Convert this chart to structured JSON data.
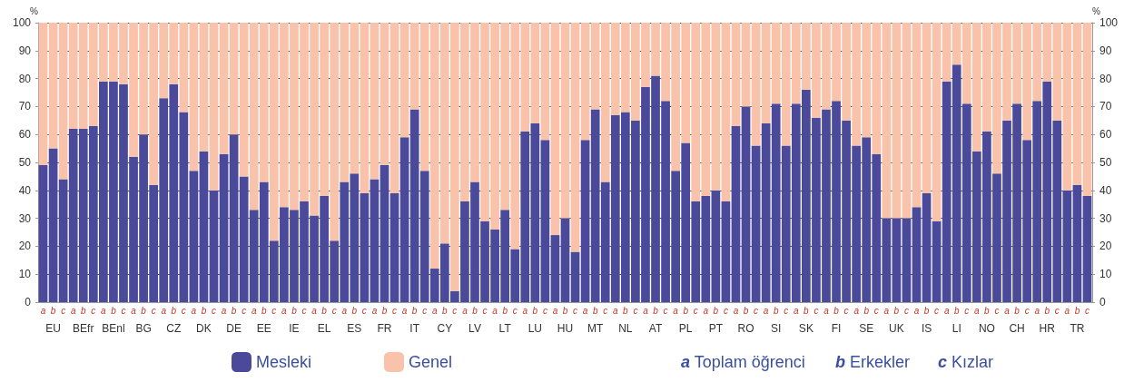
{
  "chart_data": {
    "type": "bar",
    "stacked": true,
    "ylabel": "%",
    "y2label": "%",
    "categories": [
      "a",
      "b",
      "c",
      "a",
      "b",
      "c",
      "a",
      "b",
      "c",
      "a",
      "b",
      "c",
      "a",
      "b",
      "c",
      "a",
      "b",
      "c",
      "a",
      "b",
      "c",
      "a",
      "b",
      "c",
      "a",
      "b",
      "c",
      "a",
      "b",
      "c",
      "a",
      "b",
      "c",
      "a",
      "b",
      "c",
      "a",
      "b",
      "c",
      "a",
      "b",
      "c",
      "a",
      "b",
      "c",
      "a",
      "b",
      "c",
      "a",
      "b",
      "c",
      "a",
      "b",
      "c",
      "a",
      "b",
      "c",
      "a",
      "b",
      "c",
      "a",
      "b",
      "c",
      "a",
      "b",
      "c",
      "a",
      "b",
      "c",
      "a",
      "b",
      "c",
      "a",
      "b",
      "c",
      "a",
      "b",
      "c",
      "a",
      "b",
      "c",
      "a",
      "b",
      "c",
      "a",
      "b",
      "c",
      "a",
      "b",
      "c",
      "a",
      "b",
      "c",
      "a",
      "b",
      "c",
      "a",
      "b",
      "c",
      "a",
      "b",
      "c",
      "a",
      "b",
      "c"
    ],
    "series": [
      {
        "name": "Mesleki",
        "color": "#4b4a9a",
        "values": [
          49,
          55,
          44,
          62,
          62,
          63,
          79,
          79,
          78,
          52,
          60,
          42,
          73,
          78,
          68,
          47,
          54,
          40,
          53,
          60,
          45,
          33,
          43,
          22,
          34,
          33,
          36,
          31,
          38,
          22,
          43,
          46,
          39,
          44,
          49,
          39,
          59,
          69,
          47,
          12,
          21,
          4,
          36,
          43,
          29,
          26,
          33,
          19,
          61,
          64,
          58,
          24,
          30,
          18,
          58,
          69,
          43,
          67,
          68,
          65,
          77,
          81,
          72,
          47,
          57,
          36,
          38,
          40,
          36,
          63,
          70,
          56,
          64,
          71,
          56,
          71,
          76,
          66,
          69,
          72,
          65,
          56,
          59,
          53,
          30,
          30,
          30,
          34,
          39,
          29,
          79,
          85,
          71,
          54,
          61,
          46,
          65,
          71,
          58,
          72,
          79,
          65,
          40,
          42,
          38
        ]
      },
      {
        "name": "Genel",
        "color": "#f9c2ab",
        "values": [
          51,
          45,
          56,
          38,
          38,
          37,
          21,
          21,
          22,
          48,
          40,
          58,
          27,
          22,
          32,
          53,
          46,
          60,
          47,
          40,
          55,
          67,
          57,
          78,
          66,
          67,
          64,
          69,
          62,
          78,
          57,
          54,
          61,
          56,
          51,
          61,
          41,
          31,
          53,
          88,
          79,
          96,
          64,
          57,
          71,
          74,
          67,
          81,
          39,
          36,
          42,
          76,
          70,
          82,
          42,
          31,
          57,
          33,
          32,
          35,
          23,
          19,
          28,
          53,
          43,
          64,
          62,
          60,
          64,
          37,
          30,
          44,
          36,
          29,
          44,
          29,
          24,
          34,
          31,
          28,
          35,
          44,
          41,
          47,
          70,
          70,
          70,
          66,
          61,
          71,
          21,
          15,
          29,
          46,
          39,
          54,
          35,
          29,
          42,
          28,
          21,
          35,
          60,
          58,
          62
        ]
      }
    ],
    "ylim": [
      0,
      100
    ],
    "yticks": [
      0,
      10,
      20,
      30,
      40,
      50,
      60,
      70,
      80,
      90,
      100
    ],
    "y2lim": [
      0,
      100
    ],
    "y2ticks": [
      0,
      10,
      20,
      30,
      40,
      50,
      60,
      70,
      80,
      90,
      100
    ],
    "grid": "y",
    "legend": "bottom",
    "annotations": [
      "EU",
      "BEfr",
      "BEnl",
      "BG",
      "CZ",
      "DK",
      "DE",
      "EE",
      "IE",
      "EL",
      "ES",
      "FR",
      "IT",
      "CY",
      "LV",
      "LT",
      "LU",
      "HU",
      "MT",
      "NL",
      "AT",
      "PL",
      "PT",
      "RO",
      "SI",
      "SK",
      "FI",
      "SE",
      "UK",
      "IS",
      "LI",
      "NO",
      "CH",
      "HR",
      "TR",
      "a Toplam öğrenci",
      "b Erkekler",
      "c Kızlar"
    ]
  }
}
